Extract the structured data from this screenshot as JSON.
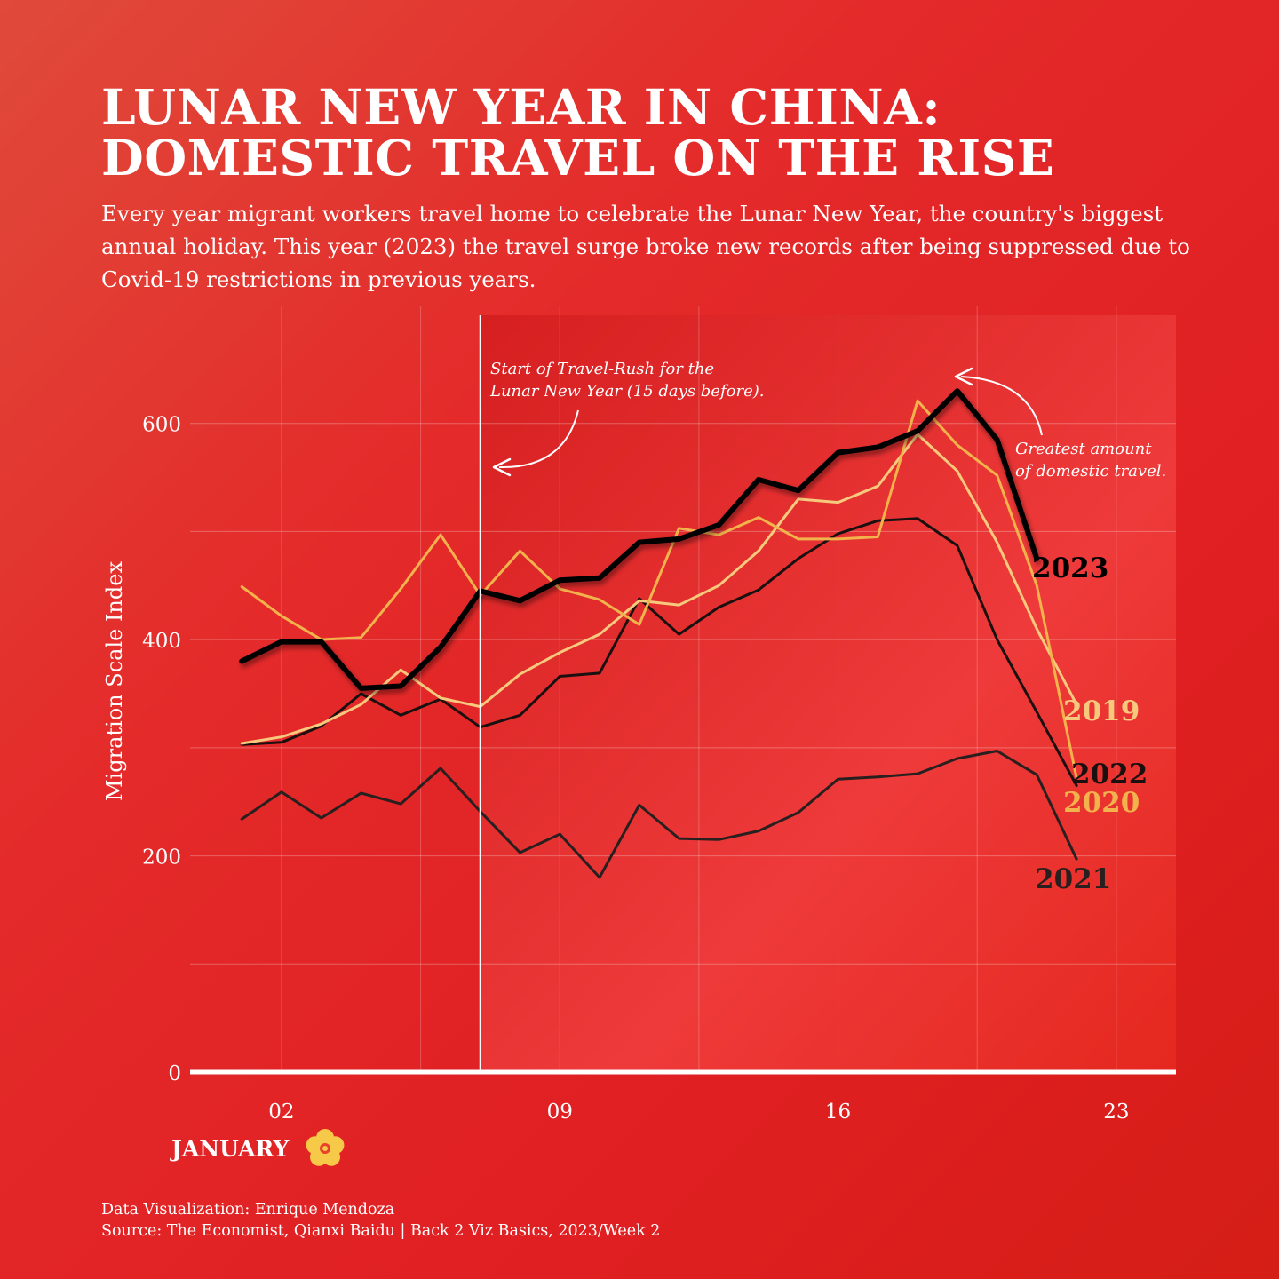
{
  "header": {
    "title_line1": "LUNAR NEW YEAR IN CHINA:",
    "title_line2": "DOMESTIC TRAVEL ON THE RISE",
    "subtitle": "Every year migrant workers travel home to celebrate the Lunar New Year, the country's biggest annual holiday. This year (2023) the travel surge broke new records after being suppressed due to Covid-19 restrictions in previous years."
  },
  "footer": {
    "credit": "Data Visualization: Enrique Mendoza",
    "source": "Source: The Economist, Qianxi Baidu | Back 2 Viz Basics, 2023/Week 2"
  },
  "chart_data": {
    "type": "line",
    "ylabel": "Migration Scale Index",
    "xlabel": "JANUARY",
    "ylim": [
      0,
      700
    ],
    "xlim": [
      -0.3,
      24.5
    ],
    "y_ticks": [
      0,
      200,
      400,
      600
    ],
    "x_ticks": [
      {
        "value": 2,
        "label": "02"
      },
      {
        "value": 9,
        "label": "09"
      },
      {
        "value": 16,
        "label": "16"
      },
      {
        "value": 23,
        "label": "23"
      }
    ],
    "grid": true,
    "colors": {
      "2019": "#f6c97d",
      "2020": "#f2b24c",
      "2021": "#2a1f1f",
      "2022": "#1a1010",
      "2023": "#000000",
      "highlight": "#ffffff"
    },
    "highlight_region": {
      "start": 7,
      "end": 24.5,
      "label": "Start of Travel-Rush for the Lunar New Year (15 days before)."
    },
    "annotations": [
      {
        "id": "rush",
        "text_line1": "Start of Travel-Rush for the",
        "text_line2": "Lunar New Year (15 days before)."
      },
      {
        "id": "peak",
        "text_line1": "Greatest amount",
        "text_line2": "of domestic travel."
      }
    ],
    "series": [
      {
        "name": "2019",
        "x": [
          1,
          2,
          3,
          4,
          5,
          6,
          7,
          8,
          9,
          10,
          11,
          12,
          13,
          14,
          15,
          16,
          17,
          18,
          19,
          20,
          21,
          22
        ],
        "values": [
          304,
          310,
          322,
          340,
          372,
          346,
          338,
          368,
          388,
          405,
          436,
          432,
          450,
          482,
          530,
          527,
          542,
          590,
          556,
          490,
          410,
          340
        ]
      },
      {
        "name": "2020",
        "x": [
          1,
          2,
          3,
          4,
          5,
          6,
          7,
          8,
          9,
          10,
          11,
          12,
          13,
          14,
          15,
          16,
          17,
          18,
          19,
          20,
          21,
          22
        ],
        "values": [
          449,
          422,
          400,
          402,
          447,
          497,
          441,
          482,
          447,
          437,
          414,
          503,
          497,
          513,
          493,
          493,
          495,
          621,
          580,
          552,
          450,
          272
        ]
      },
      {
        "name": "2021",
        "x": [
          1,
          2,
          3,
          4,
          5,
          6,
          7,
          8,
          9,
          10,
          11,
          12,
          13,
          14,
          15,
          16,
          17,
          18,
          19,
          20,
          21,
          22
        ],
        "values": [
          234,
          259,
          235,
          258,
          248,
          281,
          241,
          203,
          220,
          180,
          247,
          216,
          215,
          223,
          240,
          271,
          273,
          276,
          290,
          297,
          275,
          197
        ]
      },
      {
        "name": "2022",
        "x": [
          1,
          2,
          3,
          4,
          5,
          6,
          7,
          8,
          9,
          10,
          11,
          12,
          13,
          14,
          15,
          16,
          17,
          18,
          19,
          20,
          21,
          22
        ],
        "values": [
          303,
          305,
          320,
          350,
          330,
          345,
          319,
          330,
          366,
          369,
          438,
          405,
          430,
          446,
          475,
          498,
          510,
          512,
          487,
          400,
          333,
          265
        ]
      },
      {
        "name": "2023",
        "x": [
          1,
          2,
          3,
          4,
          5,
          6,
          7,
          8,
          9,
          10,
          11,
          12,
          13,
          14,
          15,
          16,
          17,
          18,
          19,
          20,
          21
        ],
        "values": [
          380,
          398,
          398,
          355,
          357,
          393,
          445,
          436,
          455,
          457,
          490,
          493,
          506,
          548,
          538,
          573,
          578,
          593,
          630,
          585,
          475
        ]
      }
    ]
  }
}
